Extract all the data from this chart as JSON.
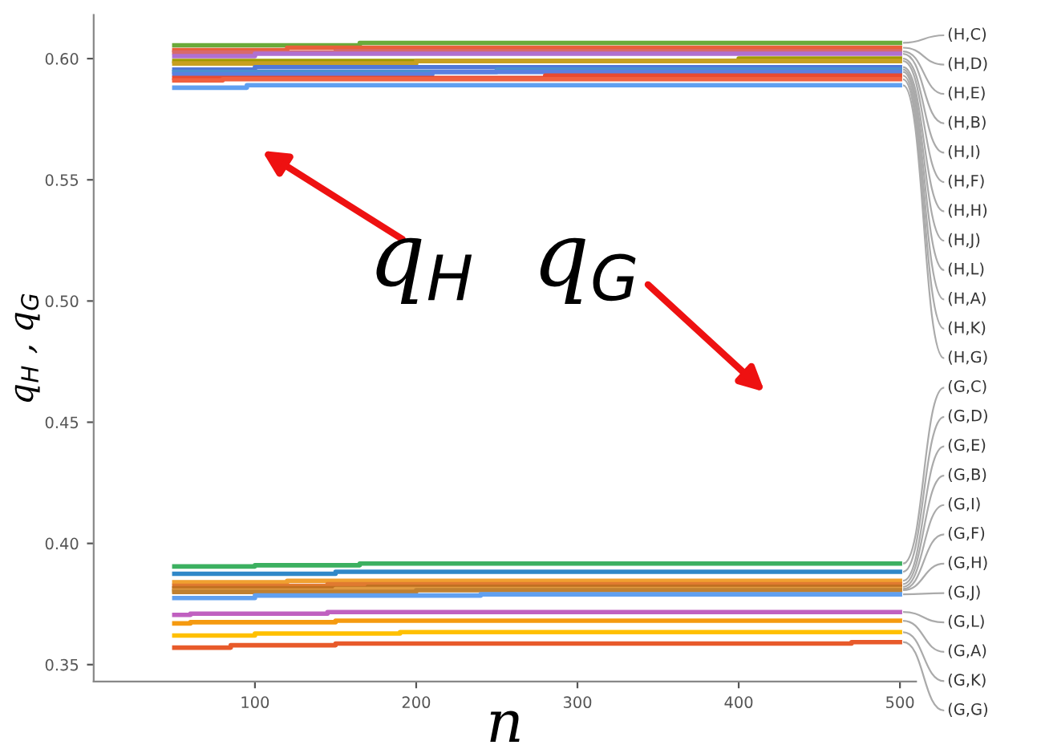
{
  "chart_data": {
    "type": "step",
    "xlabel": "n",
    "ylabel": "q$_{H}$ , q$_{G}$",
    "annotations": [
      "q$_{H}$  q$_{G}$"
    ],
    "xlim": [
      0,
      510
    ],
    "ylim": [
      0.343,
      0.618
    ],
    "xticks": [
      100,
      200,
      300,
      400,
      500
    ],
    "yticks": [
      0.35,
      {
        "value": 0.4,
        "label": "0.40"
      },
      0.45,
      {
        "value": 0.5,
        "label": "0.50"
      },
      0.55,
      {
        "value": 0.6,
        "label": "0.60"
      }
    ],
    "grid": false,
    "legend": false,
    "marker": "none",
    "line_style": "solid",
    "series": [
      {
        "name": "(H,C)",
        "color": "#6aaa3a",
        "x": [
          50,
          165,
          500
        ],
        "values": [
          0.6055,
          0.6065,
          0.6065
        ]
      },
      {
        "name": "(H,D)",
        "color": "#e8603a",
        "x": [
          50,
          120,
          500
        ],
        "values": [
          0.6035,
          0.6045,
          0.6045
        ]
      },
      {
        "name": "(H,E)",
        "color": "#d86a6a",
        "x": [
          50,
          150,
          500
        ],
        "values": [
          0.6025,
          0.603,
          0.603
        ]
      },
      {
        "name": "(H,B)",
        "color": "#b070d0",
        "x": [
          50,
          100,
          500
        ],
        "values": [
          0.601,
          0.602,
          0.602
        ]
      },
      {
        "name": "(H,I)",
        "color": "#a09a00",
        "x": [
          50,
          400,
          500
        ],
        "values": [
          0.599,
          0.6,
          0.6
        ]
      },
      {
        "name": "(H,F)",
        "color": "#c8a020",
        "x": [
          50,
          200,
          500
        ],
        "values": [
          0.598,
          0.599,
          0.599
        ]
      },
      {
        "name": "(H,H)",
        "color": "#5078d8",
        "x": [
          50,
          100,
          500
        ],
        "values": [
          0.5955,
          0.5965,
          0.5965
        ]
      },
      {
        "name": "(H,J)",
        "color": "#4a90d0",
        "x": [
          50,
          250,
          500
        ],
        "values": [
          0.5945,
          0.5955,
          0.5955
        ]
      },
      {
        "name": "(H,L)",
        "color": "#5a80e0",
        "x": [
          50,
          210,
          500
        ],
        "values": [
          0.5935,
          0.5945,
          0.5945
        ]
      },
      {
        "name": "(H,A)",
        "color": "#e84a30",
        "x": [
          50,
          280,
          500
        ],
        "values": [
          0.592,
          0.593,
          0.593
        ]
      },
      {
        "name": "(H,K)",
        "color": "#f06040",
        "x": [
          50,
          80,
          500
        ],
        "values": [
          0.591,
          0.5915,
          0.5915
        ]
      },
      {
        "name": "(H,G)",
        "color": "#60a0f0",
        "x": [
          50,
          95,
          500
        ],
        "values": [
          0.588,
          0.589,
          0.589
        ]
      },
      {
        "name": "(G,C)",
        "color": "#3cb060",
        "x": [
          50,
          100,
          165,
          500
        ],
        "values": [
          0.3905,
          0.391,
          0.3917,
          0.3917
        ]
      },
      {
        "name": "(G,D)",
        "color": "#3088c8",
        "x": [
          50,
          150,
          500
        ],
        "values": [
          0.3875,
          0.3883,
          0.3883
        ]
      },
      {
        "name": "(G,E)",
        "color": "#f0a030",
        "x": [
          50,
          120,
          500
        ],
        "values": [
          0.384,
          0.3846,
          0.3846
        ]
      },
      {
        "name": "(G,B)",
        "color": "#e07a30",
        "x": [
          50,
          145,
          500
        ],
        "values": [
          0.3825,
          0.3832,
          0.3832
        ]
      },
      {
        "name": "(G,I)",
        "color": "#c07020",
        "x": [
          50,
          170,
          500
        ],
        "values": [
          0.3815,
          0.3821,
          0.3821
        ]
      },
      {
        "name": "(G,F)",
        "color": "#e09a40",
        "x": [
          50,
          150,
          500
        ],
        "values": [
          0.3805,
          0.3812,
          0.3812
        ]
      },
      {
        "name": "(G,H)",
        "color": "#c08030",
        "x": [
          50,
          200,
          500
        ],
        "values": [
          0.38,
          0.3807,
          0.3807
        ]
      },
      {
        "name": "(G,J)",
        "color": "#60a0f0",
        "x": [
          50,
          100,
          240,
          500
        ],
        "values": [
          0.3775,
          0.3785,
          0.379,
          0.379
        ]
      },
      {
        "name": "(G,L)",
        "color": "#c060c0",
        "x": [
          50,
          60,
          145,
          500
        ],
        "values": [
          0.3705,
          0.371,
          0.3717,
          0.3717
        ]
      },
      {
        "name": "(G,A)",
        "color": "#f59a10",
        "x": [
          50,
          60,
          150,
          500
        ],
        "values": [
          0.367,
          0.3675,
          0.3681,
          0.3681
        ]
      },
      {
        "name": "(G,K)",
        "color": "#ffc000",
        "x": [
          50,
          100,
          190,
          500
        ],
        "values": [
          0.362,
          0.3628,
          0.3634,
          0.3634
        ]
      },
      {
        "name": "(G,G)",
        "color": "#e85a2a",
        "x": [
          50,
          85,
          150,
          470,
          500
        ],
        "values": [
          0.357,
          0.358,
          0.3587,
          0.3593,
          0.3593
        ]
      }
    ]
  }
}
